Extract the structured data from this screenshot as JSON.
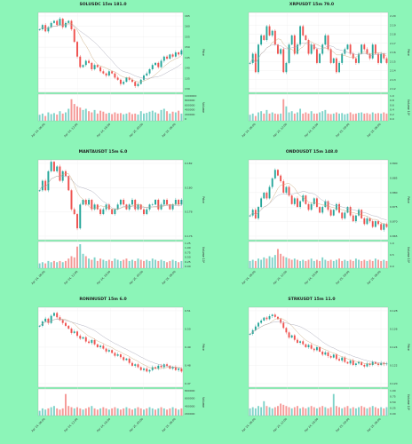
{
  "colors": {
    "background": "#8cf5b8",
    "up": "#26a69a",
    "down": "#ef5350",
    "panel": "#ffffff",
    "ma1": "#c8a87a",
    "ma2": "#a8a8b8"
  },
  "chart_data": [
    {
      "type": "candlestick",
      "title": "SOLUSDC 15m 181.0",
      "ylabel": "Price",
      "vlabel": "Volume",
      "yticks": [
        "165",
        "160",
        "155",
        "150",
        "145",
        "140",
        "135",
        "130"
      ],
      "vticks": [
        "1000000",
        "800000",
        "600000",
        "400000",
        "200000",
        "0"
      ],
      "xticks": [
        "Apr 24, 06:00",
        "Apr 24, 12:00",
        "Apr 24, 18:00",
        "Apr 25, 00:00",
        "Apr 25, 06:00"
      ],
      "ylim": [
        128,
        166
      ],
      "close": [
        158,
        160,
        157,
        159,
        161,
        162,
        160,
        163,
        159,
        161,
        162,
        158,
        152,
        145,
        140,
        141,
        143,
        142,
        139,
        141,
        140,
        138,
        137,
        136,
        138,
        137,
        135,
        134,
        132,
        133,
        135,
        134,
        133,
        131,
        132,
        134,
        136,
        137,
        139,
        141,
        142,
        140,
        143,
        145,
        144,
        146,
        145,
        147,
        146,
        148
      ],
      "volume": [
        0.25,
        0.3,
        0.2,
        0.35,
        0.28,
        0.32,
        0.26,
        0.4,
        0.3,
        0.35,
        0.5,
        0.9,
        0.7,
        0.6,
        0.55,
        0.45,
        0.5,
        0.4,
        0.35,
        0.45,
        0.3,
        0.42,
        0.38,
        0.3,
        0.33,
        0.28,
        0.35,
        0.3,
        0.32,
        0.27,
        0.3,
        0.35,
        0.28,
        0.3,
        0.26,
        0.4,
        0.3,
        0.33,
        0.38,
        0.42,
        0.35,
        0.3,
        0.45,
        0.5,
        0.4,
        0.3,
        0.38,
        0.35,
        0.42,
        0.3
      ]
    },
    {
      "type": "candlestick",
      "title": "XRPUSDT 15m 79.0",
      "ylabel": "Price",
      "vlabel": "Volume 10⁶",
      "yticks": [
        "2.20",
        "2.19",
        "2.18",
        "2.17",
        "2.16",
        "2.15",
        "2.14",
        "2.13",
        "2.12"
      ],
      "vticks": [
        "1.0",
        "0.8",
        "0.6",
        "0.4",
        "0.2",
        "0.0"
      ],
      "xticks": [
        "Apr 24, 06:00",
        "Apr 24, 12:00",
        "Apr 24, 18:00",
        "Apr 25, 00:00",
        "Apr 25, 06:00"
      ],
      "ylim": [
        2.118,
        2.205
      ],
      "close": [
        2.15,
        2.16,
        2.14,
        2.17,
        2.18,
        2.175,
        2.19,
        2.18,
        2.185,
        2.17,
        2.16,
        2.165,
        2.14,
        2.15,
        2.17,
        2.18,
        2.16,
        2.17,
        2.19,
        2.18,
        2.175,
        2.16,
        2.17,
        2.165,
        2.15,
        2.16,
        2.17,
        2.18,
        2.165,
        2.15,
        2.155,
        2.14,
        2.15,
        2.16,
        2.165,
        2.17,
        2.16,
        2.155,
        2.15,
        2.16,
        2.17,
        2.165,
        2.16,
        2.155,
        2.17,
        2.16,
        2.15,
        2.16,
        2.155,
        2.15
      ],
      "volume": [
        0.25,
        0.3,
        0.2,
        0.35,
        0.4,
        0.3,
        0.45,
        0.3,
        0.35,
        0.3,
        0.28,
        0.3,
        0.9,
        0.6,
        0.35,
        0.4,
        0.3,
        0.35,
        0.5,
        0.3,
        0.35,
        0.3,
        0.4,
        0.3,
        0.3,
        0.35,
        0.4,
        0.45,
        0.3,
        0.28,
        0.3,
        0.35,
        0.3,
        0.32,
        0.27,
        0.3,
        0.35,
        0.28,
        0.3,
        0.33,
        0.35,
        0.3,
        0.32,
        0.28,
        0.35,
        0.3,
        0.32,
        0.3,
        0.35,
        0.3
      ]
    },
    {
      "type": "candlestick",
      "title": "MANTAUSDT 15m 6.0",
      "ylabel": "Price",
      "vlabel": "Volume 10⁶",
      "yticks": [
        "0.182",
        "0.180",
        "0.178",
        "0.176"
      ],
      "vticks": [
        "1.25",
        "1.00",
        "0.75",
        "0.50",
        "0.25",
        "0.00"
      ],
      "xticks": [
        "Apr 24, 06:00",
        "Apr 24, 12:00",
        "Apr 24, 18:00",
        "Apr 25, 00:00",
        "Apr 25, 06:00"
      ],
      "ylim": [
        0.1748,
        0.1832
      ],
      "close": [
        0.18,
        0.181,
        0.18,
        0.182,
        0.183,
        0.182,
        0.1825,
        0.181,
        0.182,
        0.1815,
        0.18,
        0.178,
        0.1775,
        0.176,
        0.1785,
        0.179,
        0.1785,
        0.179,
        0.178,
        0.1785,
        0.178,
        0.1775,
        0.178,
        0.1785,
        0.178,
        0.1775,
        0.178,
        0.1785,
        0.179,
        0.1785,
        0.178,
        0.1785,
        0.179,
        0.178,
        0.1785,
        0.178,
        0.1775,
        0.178,
        0.1785,
        0.1785,
        0.179,
        0.178,
        0.1785,
        0.179,
        0.1785,
        0.178,
        0.1785,
        0.179,
        0.1785,
        0.179
      ],
      "volume": [
        0.2,
        0.25,
        0.2,
        0.3,
        0.25,
        0.3,
        0.25,
        0.3,
        0.25,
        0.3,
        0.4,
        0.5,
        0.45,
        0.9,
        1.0,
        0.6,
        0.5,
        0.4,
        0.35,
        0.45,
        0.3,
        0.4,
        0.35,
        0.3,
        0.35,
        0.3,
        0.4,
        0.35,
        0.3,
        0.35,
        0.4,
        0.3,
        0.35,
        0.3,
        0.4,
        0.35,
        0.3,
        0.35,
        0.3,
        0.4,
        0.35,
        0.3,
        0.35,
        0.3,
        0.25,
        0.3,
        0.35,
        0.3,
        0.25,
        0.3
      ]
    },
    {
      "type": "candlestick",
      "title": "ONDOUSDT 15m 148.0",
      "ylabel": "Price",
      "vlabel": "Volume 10⁶",
      "yticks": [
        "0.890",
        "0.885",
        "0.880",
        "0.875",
        "0.870",
        "0.865"
      ],
      "vticks": [
        "1.0",
        "0.5",
        "0.0"
      ],
      "xticks": [
        "Apr 24, 06:00",
        "Apr 24, 12:00",
        "Apr 24, 18:00",
        "Apr 25, 00:00",
        "Apr 25, 06:00"
      ],
      "ylim": [
        0.8635,
        0.8915
      ],
      "close": [
        0.872,
        0.874,
        0.871,
        0.875,
        0.878,
        0.88,
        0.878,
        0.882,
        0.885,
        0.888,
        0.886,
        0.884,
        0.88,
        0.882,
        0.879,
        0.876,
        0.878,
        0.875,
        0.877,
        0.879,
        0.876,
        0.874,
        0.876,
        0.878,
        0.875,
        0.873,
        0.875,
        0.877,
        0.874,
        0.872,
        0.874,
        0.876,
        0.873,
        0.871,
        0.873,
        0.875,
        0.872,
        0.87,
        0.872,
        0.874,
        0.871,
        0.869,
        0.871,
        0.87,
        0.868,
        0.87,
        0.869,
        0.867,
        0.869,
        0.868
      ],
      "volume": [
        0.3,
        0.35,
        0.3,
        0.4,
        0.35,
        0.45,
        0.4,
        0.5,
        0.45,
        0.55,
        0.8,
        0.6,
        0.5,
        0.45,
        0.4,
        0.35,
        0.4,
        0.35,
        0.3,
        0.35,
        0.3,
        0.35,
        0.4,
        0.3,
        0.35,
        0.3,
        0.45,
        0.35,
        0.3,
        0.35,
        0.3,
        0.35,
        0.4,
        0.3,
        0.35,
        0.3,
        0.35,
        0.3,
        0.4,
        0.35,
        0.3,
        0.35,
        0.3,
        0.35,
        0.3,
        0.4,
        0.35,
        0.3,
        0.35,
        0.3
      ]
    },
    {
      "type": "candlestick",
      "title": "RONINUSDT 15m 6.0",
      "ylabel": "Price",
      "vlabel": "Volume",
      "yticks": [
        "0.51",
        "0.50",
        "0.49",
        "0.48",
        "0.47"
      ],
      "vticks": [
        "800000",
        "600000",
        "400000",
        "200000"
      ],
      "xticks": [
        "Apr 24, 06:00",
        "Apr 24, 12:00",
        "Apr 24, 18:00",
        "Apr 25, 00:00",
        "Apr 25, 06:00"
      ],
      "ylim": [
        0.462,
        0.518
      ],
      "close": [
        0.505,
        0.508,
        0.51,
        0.507,
        0.512,
        0.514,
        0.511,
        0.509,
        0.507,
        0.505,
        0.503,
        0.5,
        0.501,
        0.498,
        0.496,
        0.497,
        0.494,
        0.493,
        0.495,
        0.492,
        0.49,
        0.491,
        0.489,
        0.487,
        0.488,
        0.486,
        0.484,
        0.485,
        0.483,
        0.481,
        0.482,
        0.479,
        0.477,
        0.478,
        0.476,
        0.474,
        0.475,
        0.473,
        0.474,
        0.476,
        0.475,
        0.477,
        0.476,
        0.478,
        0.477,
        0.475,
        0.476,
        0.474,
        0.475,
        0.473
      ],
      "volume": [
        0.2,
        0.3,
        0.25,
        0.3,
        0.35,
        0.4,
        0.3,
        0.25,
        0.3,
        0.9,
        0.4,
        0.35,
        0.3,
        0.35,
        0.3,
        0.25,
        0.3,
        0.35,
        0.4,
        0.3,
        0.25,
        0.3,
        0.35,
        0.3,
        0.25,
        0.3,
        0.35,
        0.3,
        0.25,
        0.3,
        0.35,
        0.3,
        0.25,
        0.3,
        0.35,
        0.3,
        0.25,
        0.3,
        0.35,
        0.3,
        0.25,
        0.3,
        0.35,
        0.3,
        0.25,
        0.3,
        0.35,
        0.3,
        0.25,
        0.3
      ]
    },
    {
      "type": "candlestick",
      "title": "STRKUSDT 15m 11.0",
      "ylabel": "Price",
      "vlabel": "Volume 10⁶",
      "yticks": [
        "0.128",
        "0.126",
        "0.124",
        "0.122",
        "0.120"
      ],
      "vticks": [
        "1.00",
        "0.75",
        "0.50",
        "0.25",
        "0.00"
      ],
      "xticks": [
        "Apr 24, 06:00",
        "Apr 24, 12:00",
        "Apr 24, 18:00",
        "Apr 25, 00:00",
        "Apr 25, 06:00"
      ],
      "ylim": [
        0.1188,
        0.1296
      ],
      "close": [
        0.126,
        0.1265,
        0.127,
        0.1275,
        0.1278,
        0.1282,
        0.128,
        0.1284,
        0.1286,
        0.1283,
        0.128,
        0.1275,
        0.1268,
        0.1262,
        0.1255,
        0.1258,
        0.1252,
        0.1248,
        0.125,
        0.1246,
        0.1242,
        0.1245,
        0.124,
        0.1238,
        0.1242,
        0.1236,
        0.1232,
        0.1235,
        0.123,
        0.1228,
        0.1232,
        0.1226,
        0.1224,
        0.1228,
        0.1222,
        0.122,
        0.1224,
        0.1218,
        0.122,
        0.1222,
        0.1218,
        0.1216,
        0.122,
        0.1218,
        0.1222,
        0.122,
        0.1218,
        0.1221,
        0.1219,
        0.122
      ],
      "volume": [
        0.3,
        0.35,
        0.3,
        0.4,
        0.35,
        0.6,
        0.4,
        0.35,
        0.3,
        0.35,
        0.4,
        0.5,
        0.45,
        0.4,
        0.35,
        0.3,
        0.35,
        0.4,
        0.3,
        0.35,
        0.3,
        0.35,
        0.4,
        0.35,
        0.3,
        0.35,
        0.4,
        0.35,
        0.3,
        0.35,
        0.9,
        0.4,
        0.35,
        0.3,
        0.35,
        0.4,
        0.3,
        0.35,
        0.3,
        0.35,
        0.4,
        0.35,
        0.3,
        0.35,
        0.4,
        0.35,
        0.3,
        0.35,
        0.3,
        0.35
      ]
    }
  ]
}
